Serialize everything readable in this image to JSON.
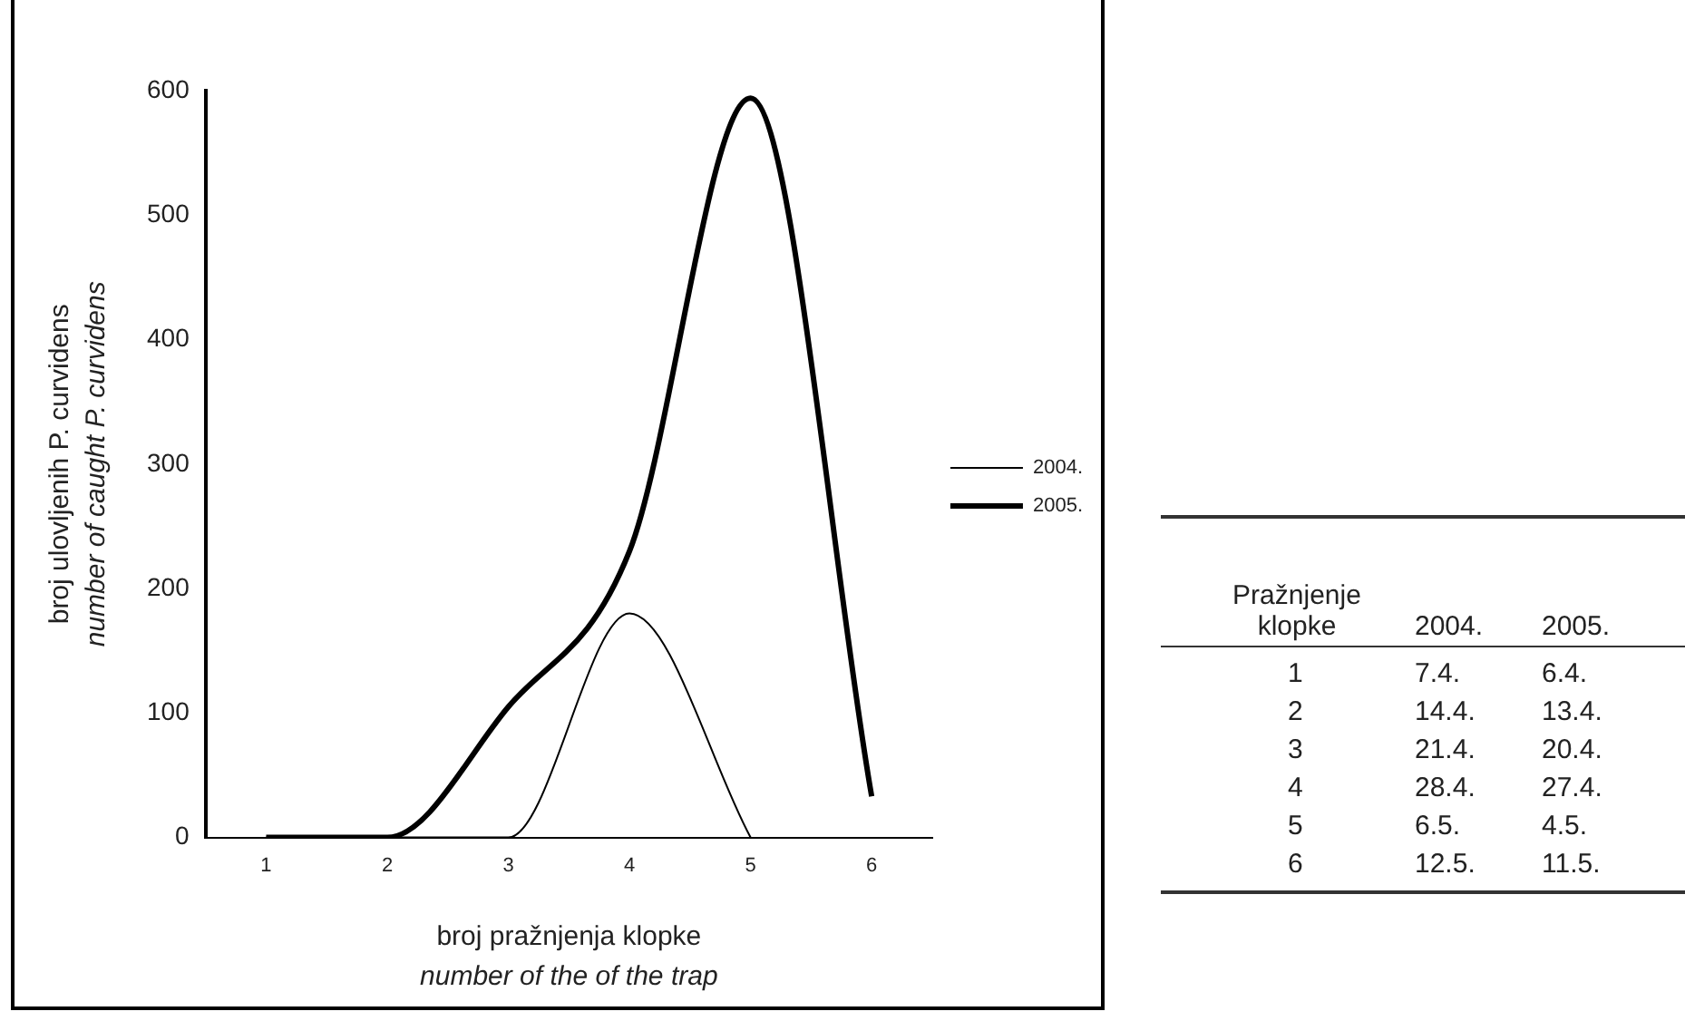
{
  "chart_data": [
    {
      "type": "line",
      "xlabel": "broj pražnjenja klopke\nnumber of the of the trap",
      "ylabel": "broj ulovljenih P. curvidens\nnumber of caught P. curvidens",
      "categories": [
        "1",
        "2",
        "3",
        "4",
        "5",
        "6"
      ],
      "series": [
        {
          "name": "2004.",
          "color": "#000000",
          "values": [
            0,
            0,
            0,
            180,
            0,
            null
          ]
        },
        {
          "name": "2005.",
          "color": "#000000",
          "values": [
            0,
            0,
            105,
            230,
            594,
            33
          ]
        }
      ],
      "ylim": [
        0,
        600
      ],
      "yticks": [
        0,
        100,
        200,
        300,
        400,
        500,
        600
      ],
      "grid": false,
      "legend": "right",
      "marker": "none"
    },
    {
      "type": "other",
      "annotations": [
        "Pražnjenje klopke",
        "2004.",
        "2005.",
        "1",
        "7.4.",
        "6.4.",
        "2",
        "14.4.",
        "13.4.",
        "3",
        "21.4.",
        "20.4.",
        "4",
        "28.4.",
        "27.4.",
        "5",
        "6.5.",
        "4.5.",
        "6",
        "12.5.",
        "11.5."
      ]
    }
  ]
}
